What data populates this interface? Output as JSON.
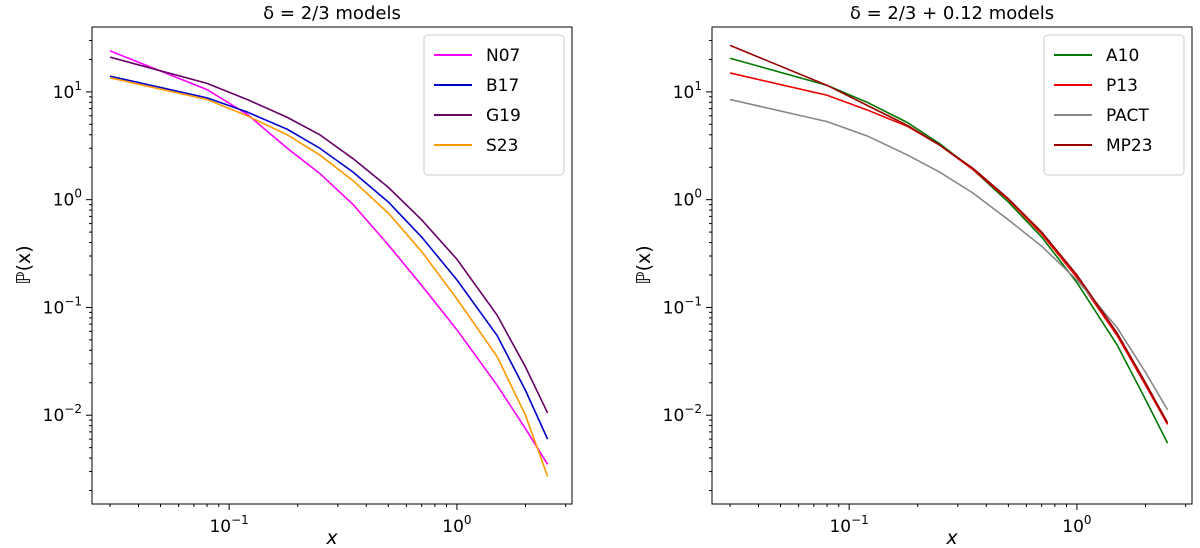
{
  "chart_data": [
    {
      "type": "line",
      "title": "δ = 2/3 models",
      "xlabel": "x",
      "ylabel": "ℙ(x)",
      "xscale": "log",
      "yscale": "log",
      "xlim": [
        0.025,
        3.2
      ],
      "ylim": [
        0.0015,
        40
      ],
      "xticks": [
        {
          "value": 0.1,
          "base": "10",
          "exp": "−1"
        },
        {
          "value": 1,
          "base": "10",
          "exp": "0"
        }
      ],
      "yticks": [
        {
          "value": 0.01,
          "base": "10",
          "exp": "−2"
        },
        {
          "value": 0.1,
          "base": "10",
          "exp": "−1"
        },
        {
          "value": 1,
          "base": "10",
          "exp": "0"
        },
        {
          "value": 10,
          "base": "10",
          "exp": "1"
        }
      ],
      "legend_position": "top-right",
      "x": [
        0.03,
        0.08,
        0.12,
        0.18,
        0.25,
        0.35,
        0.5,
        0.7,
        1.0,
        1.5,
        2.0,
        2.5
      ],
      "series": [
        {
          "name": "N07",
          "color": "#ff00ff",
          "values": [
            24,
            10.5,
            6.2,
            3.0,
            1.75,
            0.9,
            0.38,
            0.16,
            0.062,
            0.019,
            0.0075,
            0.0035
          ]
        },
        {
          "name": "B17",
          "color": "#0000cc",
          "values": [
            14,
            8.8,
            6.5,
            4.5,
            3.0,
            1.8,
            0.95,
            0.45,
            0.18,
            0.055,
            0.017,
            0.006
          ]
        },
        {
          "name": "G19",
          "color": "#660066",
          "values": [
            21,
            12,
            8.5,
            5.8,
            4.0,
            2.4,
            1.3,
            0.65,
            0.28,
            0.085,
            0.028,
            0.0105
          ]
        },
        {
          "name": "S23",
          "color": "#ff9900",
          "values": [
            13.5,
            8.5,
            6.0,
            4.0,
            2.6,
            1.5,
            0.75,
            0.33,
            0.12,
            0.035,
            0.01,
            0.0027
          ]
        }
      ]
    },
    {
      "type": "line",
      "title": "δ = 2/3 + 0.12 models",
      "xlabel": "x",
      "ylabel": "ℙ(x)",
      "xscale": "log",
      "yscale": "log",
      "xlim": [
        0.025,
        3.2
      ],
      "ylim": [
        0.0015,
        40
      ],
      "xticks": [
        {
          "value": 0.1,
          "base": "10",
          "exp": "−1"
        },
        {
          "value": 1,
          "base": "10",
          "exp": "0"
        }
      ],
      "yticks": [
        {
          "value": 0.01,
          "base": "10",
          "exp": "−2"
        },
        {
          "value": 0.1,
          "base": "10",
          "exp": "−1"
        },
        {
          "value": 1,
          "base": "10",
          "exp": "0"
        },
        {
          "value": 10,
          "base": "10",
          "exp": "1"
        }
      ],
      "legend_position": "top-right",
      "x": [
        0.03,
        0.08,
        0.12,
        0.18,
        0.25,
        0.35,
        0.5,
        0.7,
        1.0,
        1.5,
        2.0,
        2.5
      ],
      "series": [
        {
          "name": "A10",
          "color": "#007700",
          "values": [
            20.5,
            11.5,
            8.0,
            5.2,
            3.3,
            1.9,
            0.95,
            0.45,
            0.17,
            0.045,
            0.014,
            0.0055
          ]
        },
        {
          "name": "P13",
          "color": "#ee0000",
          "values": [
            15,
            9.3,
            6.8,
            4.8,
            3.2,
            1.9,
            1.0,
            0.48,
            0.19,
            0.055,
            0.019,
            0.0082
          ]
        },
        {
          "name": "PACT",
          "color": "#888888",
          "values": [
            8.5,
            5.3,
            3.9,
            2.6,
            1.8,
            1.15,
            0.65,
            0.37,
            0.18,
            0.065,
            0.025,
            0.0112
          ]
        },
        {
          "name": "MP23",
          "color": "#990000",
          "values": [
            27,
            11.5,
            7.5,
            4.9,
            3.2,
            1.95,
            1.02,
            0.5,
            0.2,
            0.058,
            0.02,
            0.0085
          ]
        }
      ]
    }
  ]
}
